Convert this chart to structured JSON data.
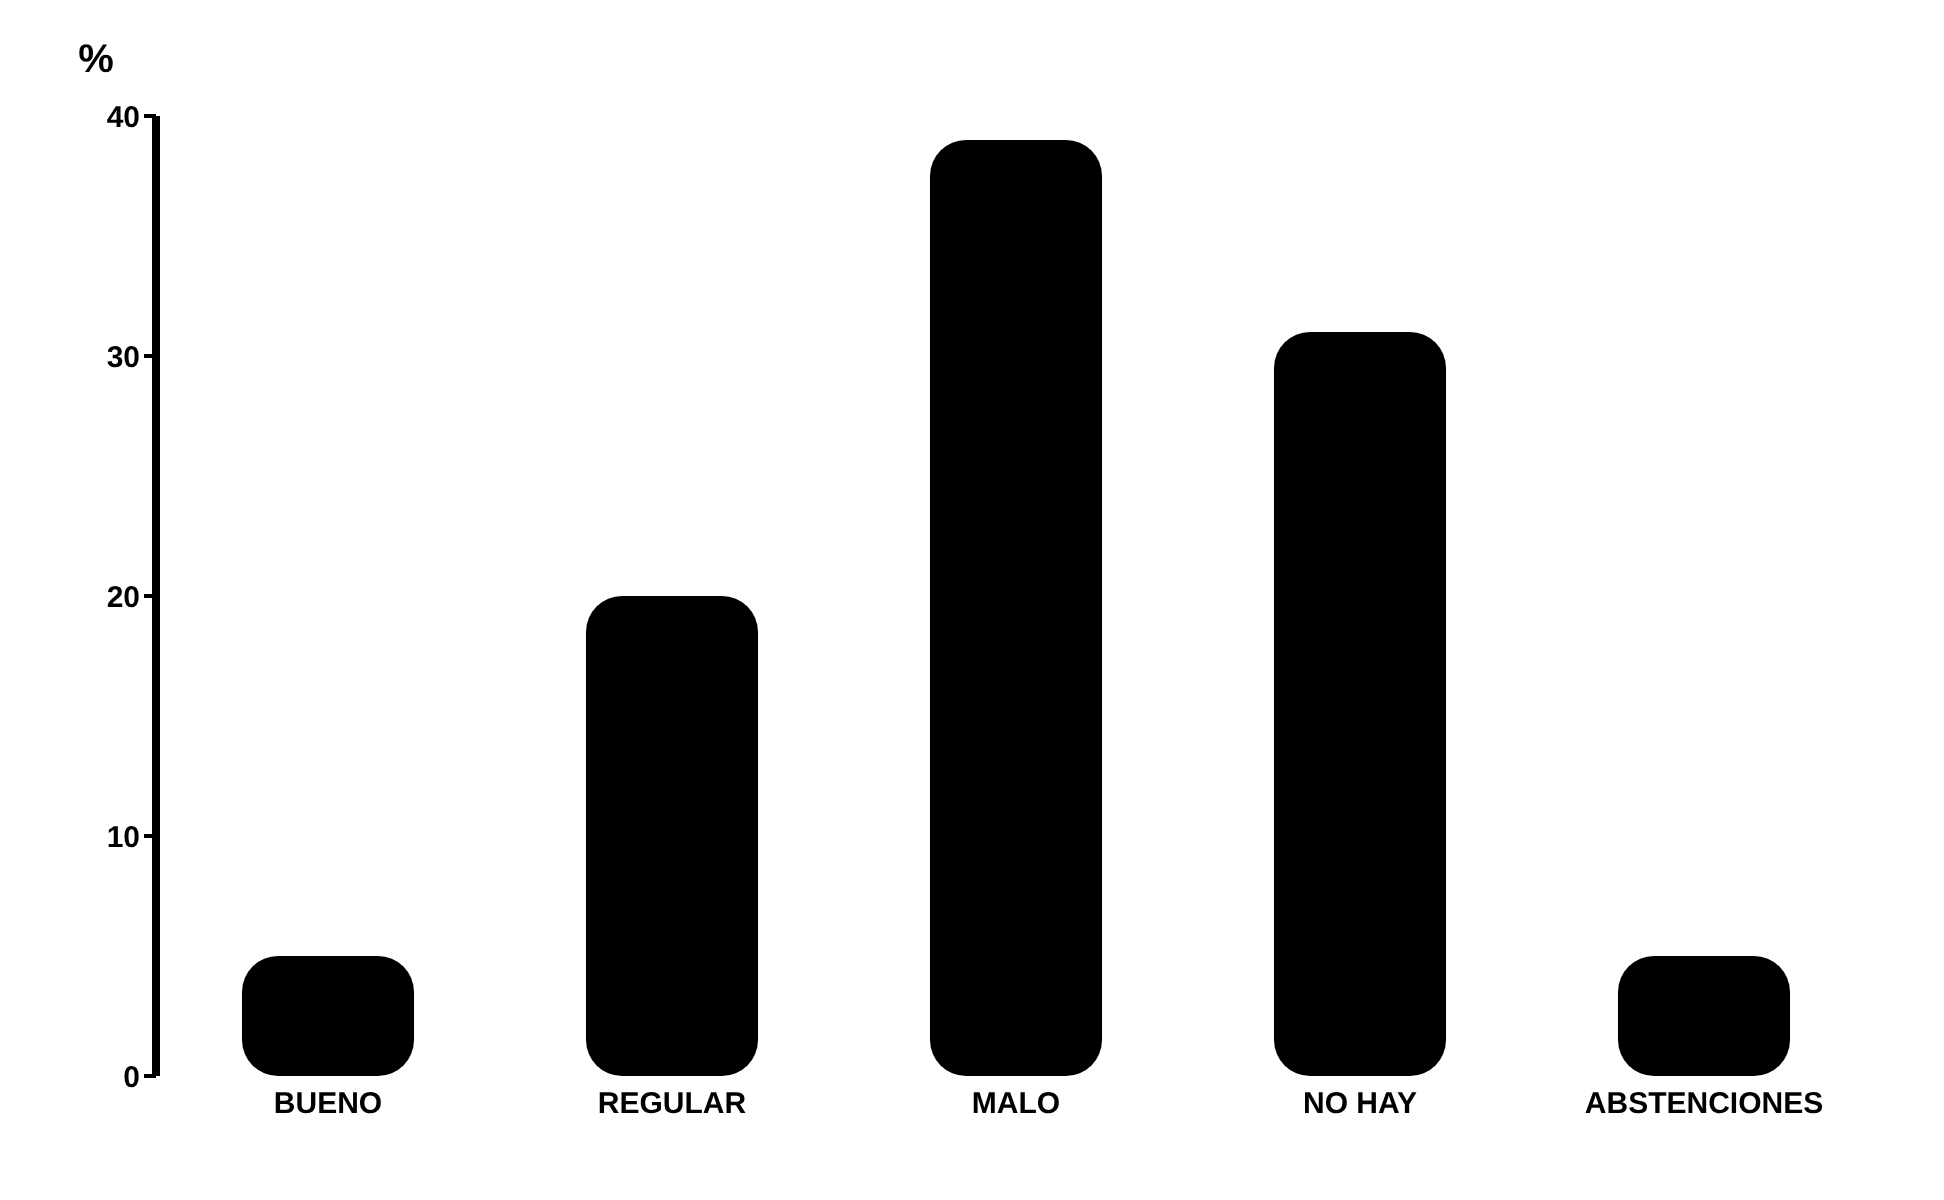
{
  "chart_data": {
    "type": "bar",
    "ylabel": "%",
    "categories": [
      "BUENO",
      "REGULAR",
      "MALO",
      "NO HAY",
      "ABSTENCIONES"
    ],
    "values": [
      5,
      20,
      39,
      31,
      5
    ],
    "color": "#000000",
    "ylim": [
      0,
      40
    ],
    "yticks": [
      0,
      10,
      20,
      30,
      40
    ],
    "grid": false
  }
}
